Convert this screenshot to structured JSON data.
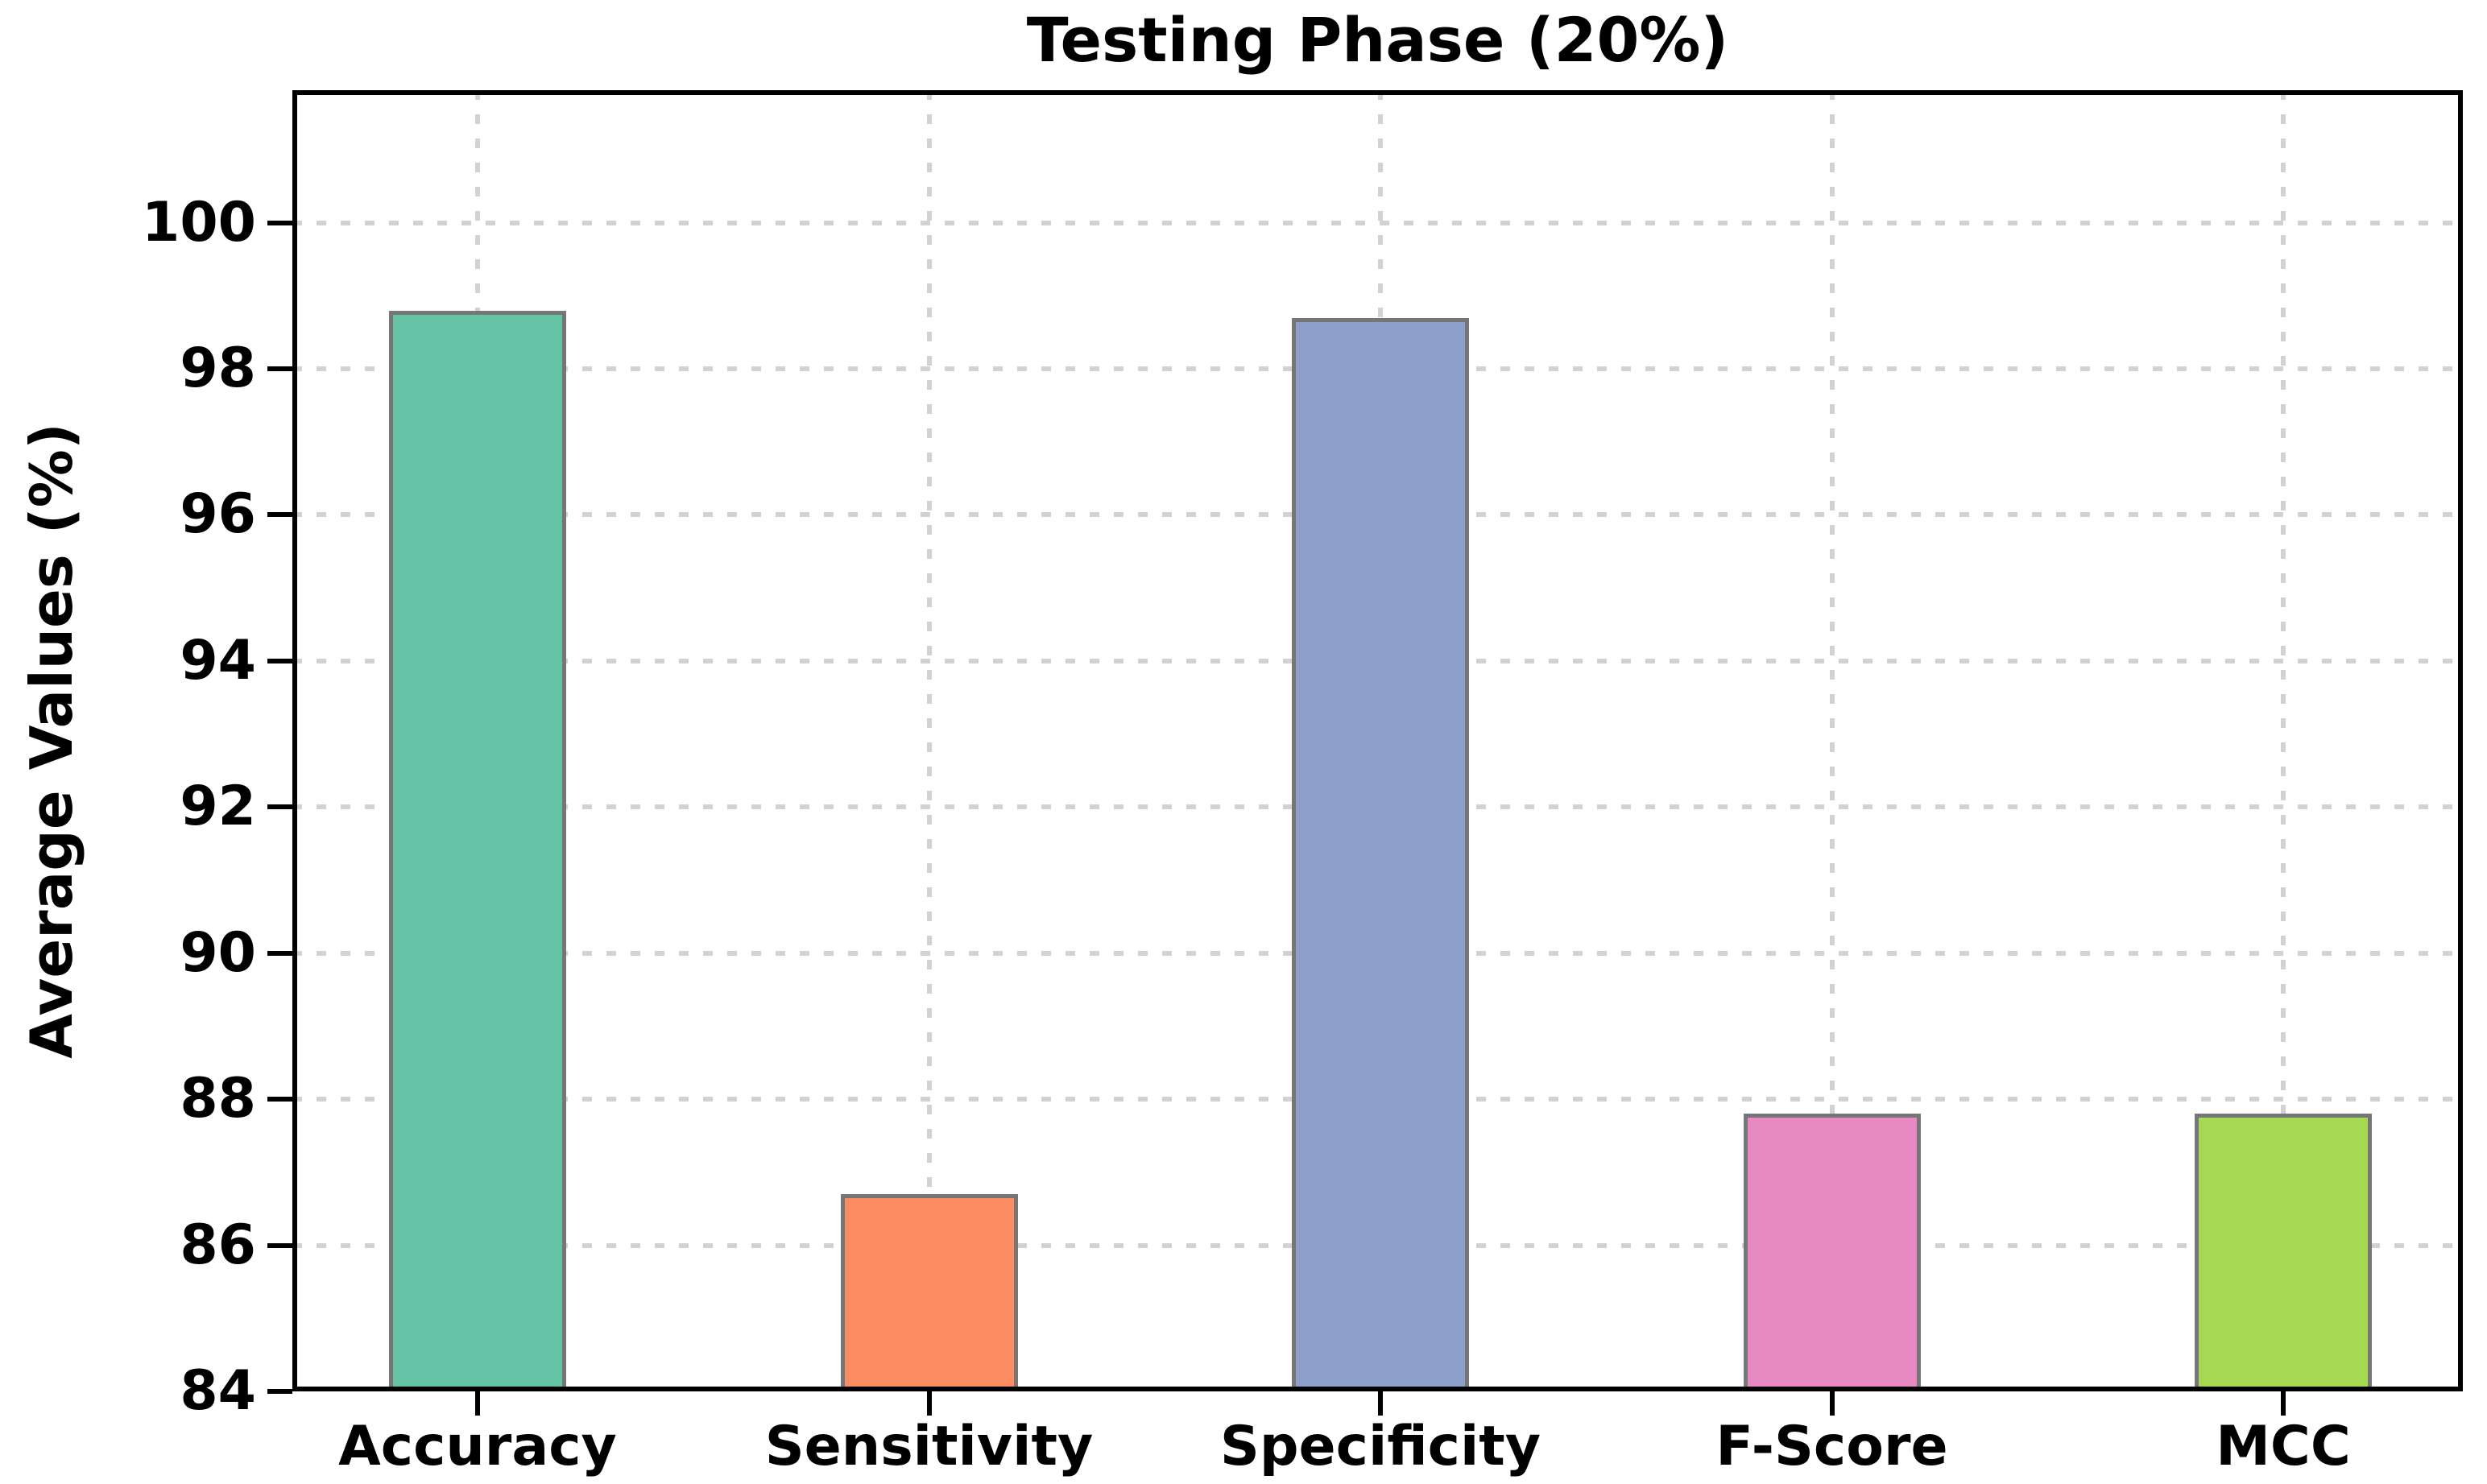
{
  "figure": {
    "background_color": "#ffffff",
    "text_color": "#000000"
  },
  "chart_data": {
    "type": "bar",
    "title": "Testing Phase (20%)",
    "categories": [
      "Accuracy",
      "Sensitivity",
      "Specificity",
      "F-Score",
      "MCC"
    ],
    "values": [
      98.8,
      86.7,
      98.7,
      87.8,
      87.8
    ],
    "bar_colors": [
      "#66c2a5",
      "#fc8d62",
      "#8da0cb",
      "#e78ac3",
      "#a6d854"
    ],
    "bar_edge_color": "#767676",
    "xlabel": "",
    "ylabel": "Average Values (%)",
    "ylim": [
      84,
      101.8
    ],
    "yticks": [
      84,
      86,
      88,
      90,
      92,
      94,
      96,
      98,
      100
    ],
    "ytick_labels": [
      "84",
      "86",
      "88",
      "90",
      "92",
      "94",
      "96",
      "98",
      "100"
    ],
    "grid": "on",
    "grid_style": "dotted",
    "grid_color": "#d2d2d2",
    "legend_position": "none"
  }
}
